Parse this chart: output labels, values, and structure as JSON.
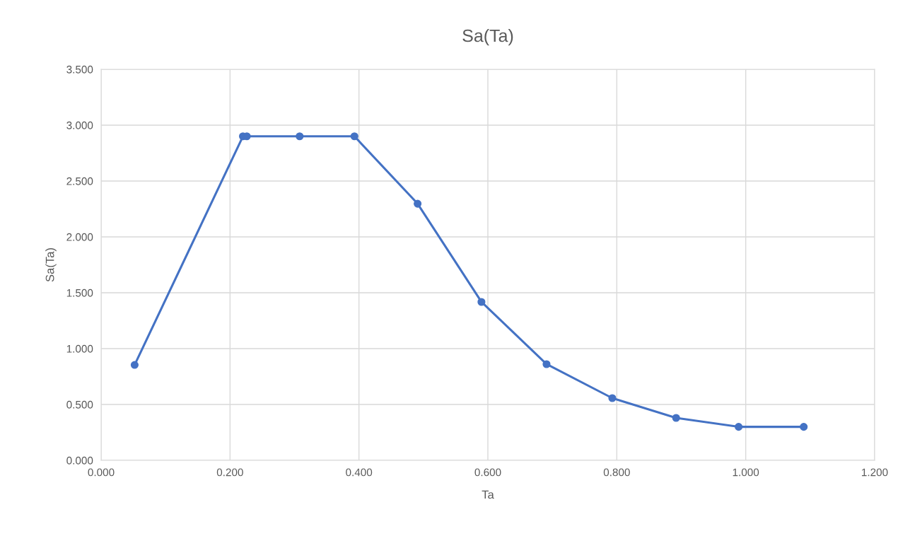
{
  "chart_data": {
    "type": "line",
    "title": "Sa(Ta)",
    "xlabel": "Ta",
    "ylabel": "Sa(Ta)",
    "x": [
      0.052,
      0.22,
      0.226,
      0.308,
      0.393,
      0.491,
      0.59,
      0.691,
      0.793,
      0.892,
      0.989,
      1.09
    ],
    "series": [
      {
        "color": "#4472c4",
        "values": [
          0.854,
          2.9,
          2.9,
          2.9,
          2.9,
          2.297,
          1.418,
          0.861,
          0.557,
          0.38,
          0.3,
          0.3
        ]
      }
    ],
    "xlim": [
      0,
      1.2
    ],
    "xticks": [
      {
        "value": 0,
        "label": "0.000"
      },
      {
        "value": 0.2,
        "label": "0.200"
      },
      {
        "value": 0.4,
        "label": "0.400"
      },
      {
        "value": 0.6,
        "label": "0.600"
      },
      {
        "value": 0.8,
        "label": "0.800"
      },
      {
        "value": 1.0,
        "label": "1.000"
      },
      {
        "value": 1.2,
        "label": "1.200"
      }
    ],
    "ylim": [
      0,
      3.5
    ],
    "yticks": [
      {
        "value": 0,
        "label": "0.000"
      },
      {
        "value": 0.5,
        "label": "0.500"
      },
      {
        "value": 1.0,
        "label": "1.000"
      },
      {
        "value": 1.5,
        "label": "1.500"
      },
      {
        "value": 2.0,
        "label": "2.000"
      },
      {
        "value": 2.5,
        "label": "2.500"
      },
      {
        "value": 3.0,
        "label": "3.000"
      },
      {
        "value": 3.5,
        "label": "3.500"
      }
    ],
    "grid": true,
    "marker": "circle",
    "line_style": "solid"
  }
}
